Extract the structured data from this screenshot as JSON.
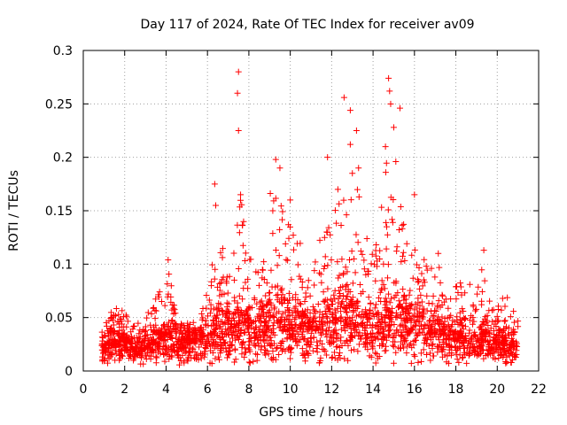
{
  "chart_data": {
    "type": "scatter",
    "title": "Day 117 of 2024, Rate Of TEC Index for receiver av09",
    "xlabel": "GPS time / hours",
    "ylabel": "ROTI / TECUs",
    "xlim": [
      0,
      22
    ],
    "ylim": [
      0,
      0.3
    ],
    "x_ticks": [
      "0",
      "2",
      "4",
      "6",
      "8",
      "10",
      "12",
      "14",
      "16",
      "18",
      "20",
      "22"
    ],
    "y_ticks": [
      "0",
      "0.05",
      "0.1",
      "0.15",
      "0.2",
      "0.25",
      "0.3"
    ],
    "grid": true,
    "marker": "+",
    "color": "#ff0000",
    "series": [
      {
        "name": "ROTI",
        "profile": [
          {
            "x": 0.9,
            "base": 0.022,
            "peak": 0.04
          },
          {
            "x": 1.5,
            "base": 0.025,
            "peak": 0.062
          },
          {
            "x": 2.0,
            "base": 0.024,
            "peak": 0.055
          },
          {
            "x": 3.0,
            "base": 0.02,
            "peak": 0.045
          },
          {
            "x": 3.3,
            "base": 0.025,
            "peak": 0.068
          },
          {
            "x": 3.9,
            "base": 0.03,
            "peak": 0.08
          },
          {
            "x": 4.1,
            "base": 0.035,
            "peak": 0.104
          },
          {
            "x": 4.5,
            "base": 0.028,
            "peak": 0.052
          },
          {
            "x": 5.5,
            "base": 0.028,
            "peak": 0.04
          },
          {
            "x": 6.2,
            "base": 0.035,
            "peak": 0.09
          },
          {
            "x": 6.4,
            "base": 0.04,
            "peak": 0.17
          },
          {
            "x": 7.0,
            "base": 0.04,
            "peak": 0.09
          },
          {
            "x": 7.5,
            "base": 0.045,
            "peak": 0.18
          },
          {
            "x": 8.0,
            "base": 0.04,
            "peak": 0.11
          },
          {
            "x": 8.5,
            "base": 0.04,
            "peak": 0.09
          },
          {
            "x": 9.2,
            "base": 0.05,
            "peak": 0.19
          },
          {
            "x": 9.8,
            "base": 0.045,
            "peak": 0.15
          },
          {
            "x": 10.5,
            "base": 0.04,
            "peak": 0.13
          },
          {
            "x": 11.0,
            "base": 0.035,
            "peak": 0.09
          },
          {
            "x": 11.8,
            "base": 0.045,
            "peak": 0.17
          },
          {
            "x": 12.5,
            "base": 0.05,
            "peak": 0.18
          },
          {
            "x": 13.0,
            "base": 0.05,
            "peak": 0.2
          },
          {
            "x": 13.5,
            "base": 0.045,
            "peak": 0.15
          },
          {
            "x": 14.0,
            "base": 0.04,
            "peak": 0.12
          },
          {
            "x": 14.6,
            "base": 0.05,
            "peak": 0.2
          },
          {
            "x": 15.2,
            "base": 0.05,
            "peak": 0.16
          },
          {
            "x": 15.8,
            "base": 0.045,
            "peak": 0.14
          },
          {
            "x": 16.5,
            "base": 0.04,
            "peak": 0.11
          },
          {
            "x": 17.0,
            "base": 0.035,
            "peak": 0.13
          },
          {
            "x": 17.5,
            "base": 0.03,
            "peak": 0.07
          },
          {
            "x": 18.0,
            "base": 0.03,
            "peak": 0.08
          },
          {
            "x": 18.5,
            "base": 0.03,
            "peak": 0.09
          },
          {
            "x": 19.0,
            "base": 0.028,
            "peak": 0.07
          },
          {
            "x": 19.3,
            "base": 0.03,
            "peak": 0.11
          },
          {
            "x": 19.8,
            "base": 0.025,
            "peak": 0.06
          },
          {
            "x": 20.5,
            "base": 0.025,
            "peak": 0.075
          },
          {
            "x": 21.0,
            "base": 0.022,
            "peak": 0.08
          }
        ],
        "outliers": [
          {
            "x": 7.5,
            "y": 0.28
          },
          {
            "x": 7.45,
            "y": 0.26
          },
          {
            "x": 7.5,
            "y": 0.225
          },
          {
            "x": 12.6,
            "y": 0.256
          },
          {
            "x": 12.9,
            "y": 0.244
          },
          {
            "x": 13.2,
            "y": 0.225
          },
          {
            "x": 12.9,
            "y": 0.212
          },
          {
            "x": 11.8,
            "y": 0.2
          },
          {
            "x": 14.75,
            "y": 0.274
          },
          {
            "x": 14.8,
            "y": 0.262
          },
          {
            "x": 14.85,
            "y": 0.25
          },
          {
            "x": 15.3,
            "y": 0.246
          },
          {
            "x": 15.0,
            "y": 0.228
          },
          {
            "x": 14.6,
            "y": 0.21
          },
          {
            "x": 15.1,
            "y": 0.196
          },
          {
            "x": 9.3,
            "y": 0.198
          },
          {
            "x": 9.5,
            "y": 0.19
          },
          {
            "x": 6.35,
            "y": 0.175
          },
          {
            "x": 6.4,
            "y": 0.155
          },
          {
            "x": 7.6,
            "y": 0.165
          },
          {
            "x": 16.0,
            "y": 0.165
          },
          {
            "x": 13.0,
            "y": 0.185
          },
          {
            "x": 13.3,
            "y": 0.19
          },
          {
            "x": 4.1,
            "y": 0.104
          },
          {
            "x": 19.35,
            "y": 0.113
          },
          {
            "x": 10.0,
            "y": 0.16
          },
          {
            "x": 12.3,
            "y": 0.17
          }
        ]
      }
    ]
  }
}
